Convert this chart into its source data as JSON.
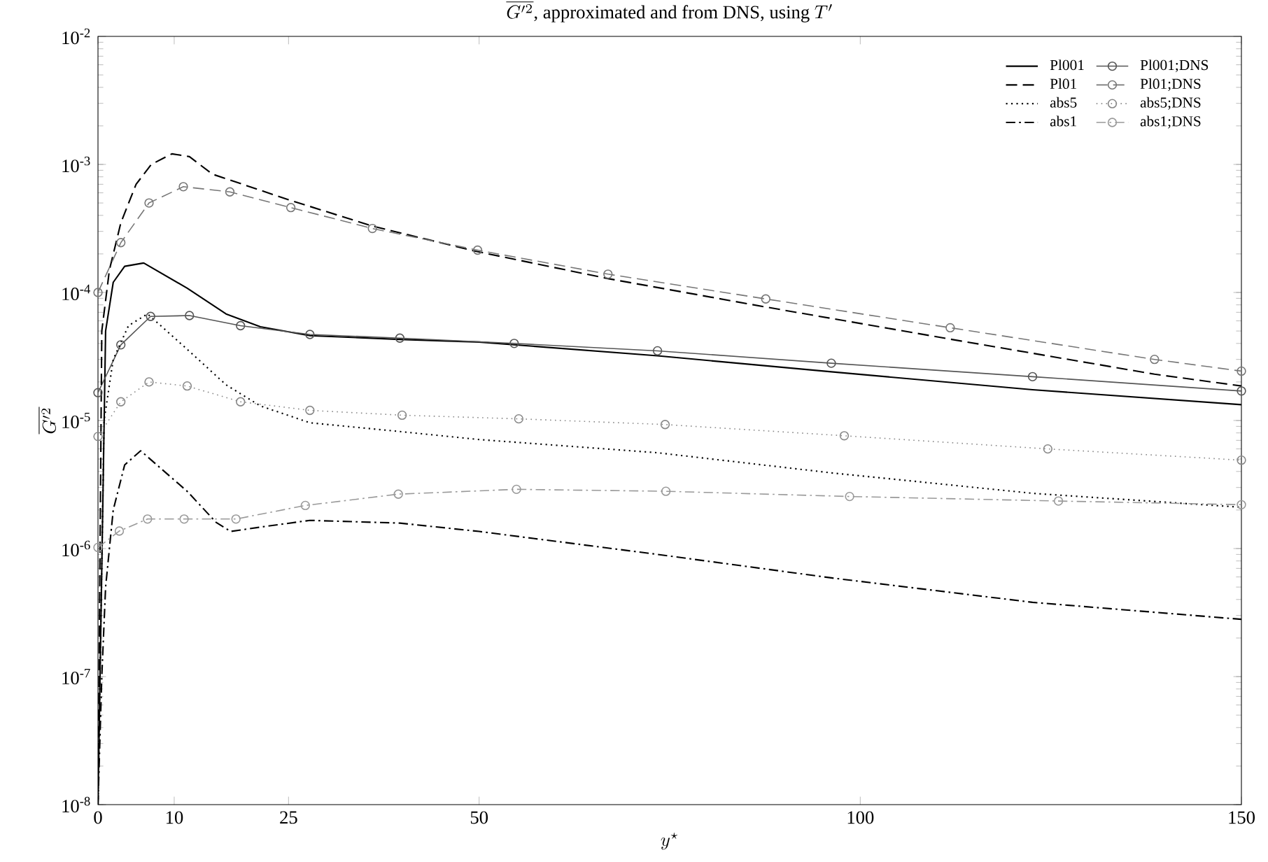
{
  "chart_data": {
    "type": "line",
    "title": "\\overline{G'^2}\\mbox{, approximated and from DNS, using }T'",
    "xlabel": "y^\\star",
    "ylabel": "\\overline{G'^2}",
    "log": "y",
    "legend": "top right",
    "grid": false,
    "xlim": [
      0,
      150
    ],
    "ylim": [
      1e-08,
      0.01
    ],
    "xticks": [
      0,
      10,
      25,
      50,
      100,
      150
    ],
    "yticks": [
      {
        "value": 1e-08,
        "label": "10$^{-8}$"
      },
      {
        "value": 1e-07,
        "label": "10$^{-7}$"
      },
      {
        "value": 1e-06,
        "label": "10$^{-6}$"
      },
      {
        "value": 1e-05,
        "label": "10$^{-5}$"
      },
      {
        "value": 0.0001,
        "label": "10$^{-4}$"
      },
      {
        "value": 0.001,
        "label": "10$^{-3}$"
      },
      {
        "value": 0.01,
        "label": "10$^{-2}$"
      }
    ],
    "series": [
      {
        "name": "Pl001",
        "color": "#000000",
        "line_style": "solid",
        "marker": "none",
        "x": [
          0,
          1,
          2,
          3.5,
          6,
          11.7,
          16.8,
          21.3,
          27.8,
          39.6,
          50,
          73.4,
          96.2,
          122.6,
          150
        ],
        "values": [
          1e-08,
          5e-05,
          0.00012,
          0.00016,
          0.00017,
          0.000108,
          6.8e-05,
          5.4e-05,
          4.6e-05,
          4.3e-05,
          4.1e-05,
          3.2e-05,
          2.4e-05,
          1.74e-05,
          1.33e-05
        ]
      },
      {
        "name": "Pl001;DNS",
        "color": "#555555",
        "line_style": "solid",
        "marker": "circle",
        "x": [
          0,
          3,
          6.9,
          12,
          18.7,
          27.8,
          39.6,
          54.6,
          73.4,
          96.2,
          122.6,
          150
        ],
        "values": [
          1.65e-05,
          3.9e-05,
          6.5e-05,
          6.6e-05,
          5.5e-05,
          4.7e-05,
          4.4e-05,
          4e-05,
          3.5e-05,
          2.8e-05,
          2.2e-05,
          1.7e-05
        ]
      },
      {
        "name": "Pl01",
        "color": "#000000",
        "line_style": "dashed",
        "marker": "none",
        "x": [
          0,
          0.5,
          1.5,
          3,
          5,
          7,
          9.7,
          12,
          15,
          25,
          36,
          49.5,
          67,
          87.6,
          112,
          138.6,
          150
        ],
        "values": [
          1e-08,
          5e-05,
          0.00015,
          0.00035,
          0.0007,
          0.001,
          0.00121,
          0.00115,
          0.00084,
          0.00053,
          0.00033,
          0.00021,
          0.000128,
          7.7e-05,
          4.3e-05,
          2.3e-05,
          1.86e-05
        ]
      },
      {
        "name": "Pl01;DNS",
        "color": "#777777",
        "line_style": "dashed",
        "marker": "circle",
        "x": [
          0,
          3,
          6.7,
          11.2,
          17.3,
          25.3,
          36,
          49.8,
          66.9,
          87.6,
          111.8,
          138.6,
          150
        ],
        "values": [
          0.0001,
          0.000245,
          0.0005,
          0.00067,
          0.00061,
          0.00046,
          0.000316,
          0.000214,
          0.000139,
          8.9e-05,
          5.3e-05,
          3e-05,
          2.43e-05
        ]
      },
      {
        "name": "abs5",
        "color": "#000000",
        "line_style": "dotted",
        "marker": "none",
        "x": [
          0,
          0.8,
          2,
          4,
          6.5,
          11.7,
          16.8,
          21.3,
          27.8,
          39.6,
          50,
          73.4,
          96.2,
          122.6,
          150
        ],
        "values": [
          1e-08,
          1e-05,
          3e-05,
          5.5e-05,
          6.8e-05,
          3.6e-05,
          1.9e-05,
          1.3e-05,
          9.6e-06,
          8.2e-06,
          7.1e-06,
          5.6e-06,
          3.9e-06,
          2.7e-06,
          2.1e-06
        ]
      },
      {
        "name": "abs5;DNS",
        "color": "#888888",
        "line_style": "dotted",
        "marker": "circle",
        "x": [
          0,
          3,
          6.7,
          11.7,
          18.7,
          27.8,
          39.9,
          55.2,
          74.4,
          97.9,
          124.6,
          150
        ],
        "values": [
          7.5e-06,
          1.4e-05,
          2e-05,
          1.86e-05,
          1.4e-05,
          1.2e-05,
          1.1e-05,
          1.03e-05,
          9.3e-06,
          7.6e-06,
          6e-06,
          4.9e-06
        ]
      },
      {
        "name": "abs1",
        "color": "#000000",
        "line_style": "dashdot",
        "marker": "none",
        "x": [
          0,
          0.5,
          1,
          2,
          3.5,
          5.6,
          11.7,
          15.5,
          17.4,
          21.3,
          27.8,
          39.6,
          50,
          73.4,
          96.2,
          122.6,
          150
        ],
        "values": [
          1e-08,
          1e-07,
          5e-07,
          2e-06,
          4.5e-06,
          5.8e-06,
          2.8e-06,
          1.6e-06,
          1.36e-06,
          1.47e-06,
          1.66e-06,
          1.58e-06,
          1.36e-06,
          9e-07,
          5.9e-07,
          3.8e-07,
          2.8e-07
        ]
      },
      {
        "name": "abs1;DNS",
        "color": "#999999",
        "line_style": "dashdot",
        "marker": "circle",
        "x": [
          0,
          2.8,
          6.5,
          11.3,
          18.1,
          27.2,
          39.4,
          54.9,
          74.5,
          98.6,
          126,
          150
        ],
        "values": [
          1.02e-06,
          1.37e-06,
          1.7e-06,
          1.7e-06,
          1.7e-06,
          2.17e-06,
          2.66e-06,
          2.9e-06,
          2.8e-06,
          2.55e-06,
          2.35e-06,
          2.2e-06
        ]
      }
    ]
  }
}
